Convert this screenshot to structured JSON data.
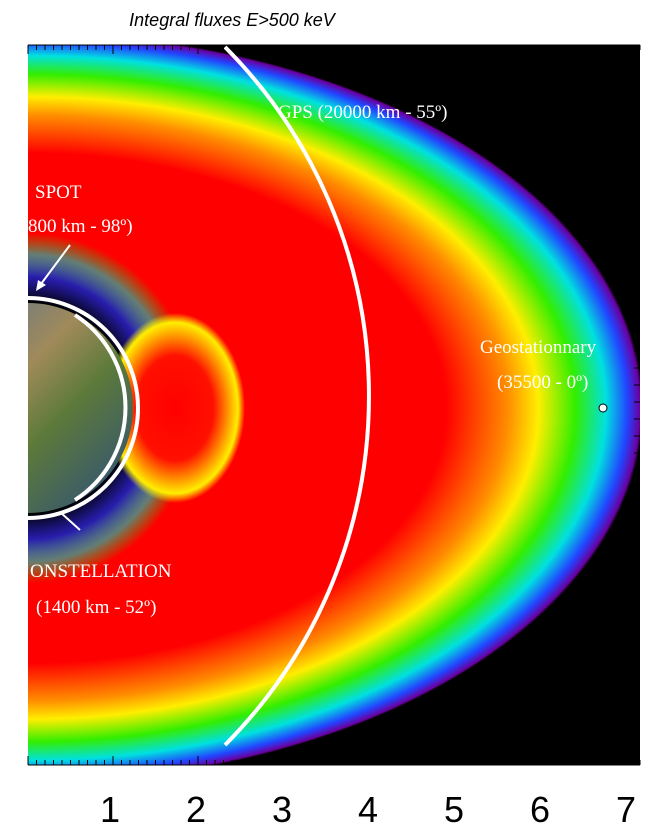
{
  "header": {
    "title": "Integral fluxes E>500 keV"
  },
  "labels": {
    "gps": "GPS (20000 km - 55º)",
    "spot_name": "SPOT",
    "spot_orbit": "800 km - 98º)",
    "geo_name": "Geostationnary",
    "geo_orbit": "(35500 - 0º)",
    "constellation_name": "ONSTELLATION",
    "constellation_orbit": "(1400 km - 52º)"
  },
  "axis_labels": [
    "1",
    "2",
    "3",
    "4",
    "5",
    "6",
    "7"
  ]
}
